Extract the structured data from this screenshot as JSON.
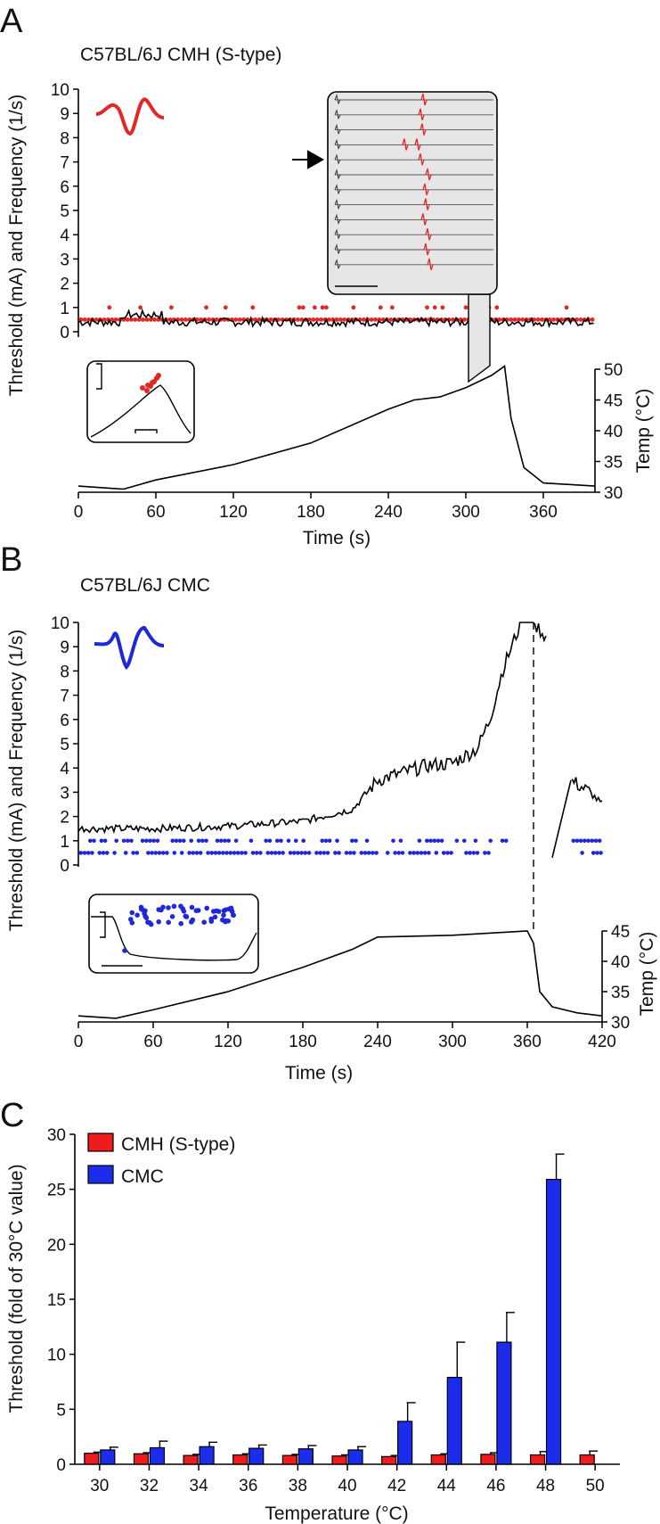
{
  "chart_data": [
    {
      "panel": "A",
      "type": "line",
      "title": "C57BL/6J  CMH (S-type)",
      "xlabel": "Time (s)",
      "ylabel": "Threshold (mA) and Frequency (1/s)",
      "ylabel_right": "Temp (°C)",
      "xlim": [
        0,
        400
      ],
      "ylim": [
        0,
        10
      ],
      "ylim_right": [
        30,
        50
      ],
      "x_ticks": [
        0,
        60,
        120,
        180,
        240,
        300,
        360
      ],
      "y_ticks": [
        0,
        1,
        2,
        3,
        4,
        5,
        6,
        7,
        8,
        9,
        10
      ],
      "y_ticks_right": [
        30,
        35,
        40,
        45,
        50
      ],
      "threshold_baseline": 0.4,
      "threshold_elevated": {
        "x": [
          35,
          65
        ],
        "y": 0.7
      },
      "frequency_red": {
        "y_values": [
          0.5,
          1
        ],
        "x_end": 400
      },
      "temperature": {
        "x": [
          0,
          35,
          60,
          120,
          180,
          240,
          260,
          280,
          300,
          320,
          330,
          335,
          345,
          360,
          400
        ],
        "y": [
          31,
          30.5,
          32,
          34.5,
          38,
          43.5,
          45,
          45.5,
          47,
          49,
          50.5,
          42,
          34,
          31.5,
          31
        ]
      },
      "inset_arrow_row": 7,
      "waveform_color": "#e32727"
    },
    {
      "panel": "B",
      "type": "line",
      "title": "C57BL/6J  CMC",
      "xlabel": "Time (s)",
      "ylabel": "Threshold (mA) and Frequency (1/s)",
      "ylabel_right": "Temp (°C)",
      "xlim": [
        0,
        420
      ],
      "ylim": [
        0,
        10
      ],
      "ylim_right": [
        30,
        45
      ],
      "x_ticks": [
        0,
        60,
        120,
        180,
        240,
        300,
        360,
        420
      ],
      "y_ticks": [
        0,
        1,
        2,
        3,
        4,
        5,
        6,
        7,
        8,
        9,
        10
      ],
      "y_ticks_right": [
        30,
        35,
        40,
        45
      ],
      "threshold": {
        "x": [
          0,
          60,
          120,
          180,
          220,
          240,
          260,
          280,
          300,
          320,
          330,
          340,
          355,
          365,
          375,
          380,
          395,
          410,
          420
        ],
        "y": [
          1.5,
          1.5,
          1.6,
          1.8,
          2.3,
          3.5,
          3.8,
          4.1,
          4.2,
          4.8,
          6,
          8,
          10,
          10,
          9.4,
          null,
          3.5,
          3,
          2.5
        ]
      },
      "frequency_blue": {
        "y_values": [
          0.5,
          1
        ],
        "x_end": 330,
        "resume_x": [
          340,
          420
        ]
      },
      "temperature": {
        "x": [
          0,
          30,
          60,
          120,
          180,
          220,
          240,
          300,
          360,
          365,
          370,
          380,
          400,
          420
        ],
        "y": [
          31,
          30.6,
          32,
          35,
          39,
          42,
          44,
          44.3,
          45,
          43,
          35,
          32.5,
          31.5,
          31
        ]
      },
      "dashed_line_x": 365,
      "waveform_color": "#1f28d8"
    },
    {
      "panel": "C",
      "type": "bar",
      "xlabel": "Temperature (°C)",
      "ylabel": "Threshold (fold of 30°C value)",
      "ylim": [
        0,
        30
      ],
      "y_ticks": [
        0,
        5,
        10,
        15,
        20,
        25,
        30
      ],
      "categories": [
        "30",
        "32",
        "34",
        "36",
        "38",
        "40",
        "42",
        "44",
        "46",
        "48",
        "50"
      ],
      "series": [
        {
          "name": "CMH (S-type)",
          "color": "#ee1c1c",
          "values": [
            1,
            0.95,
            0.8,
            0.85,
            0.8,
            0.75,
            0.7,
            0.85,
            0.9,
            0.85,
            0.85
          ],
          "errors": [
            0.1,
            0.1,
            0.1,
            0.1,
            0.1,
            0.1,
            0.1,
            0.1,
            0.15,
            0.3,
            0.35
          ]
        },
        {
          "name": "CMC",
          "color": "#1c2ced",
          "values": [
            1.3,
            1.5,
            1.6,
            1.45,
            1.4,
            1.3,
            3.9,
            7.9,
            11.1,
            25.9,
            null
          ],
          "errors": [
            0.25,
            0.6,
            0.4,
            0.3,
            0.3,
            0.3,
            1.7,
            3.2,
            2.7,
            2.3,
            null
          ]
        }
      ],
      "legend_position": "top-left"
    }
  ]
}
